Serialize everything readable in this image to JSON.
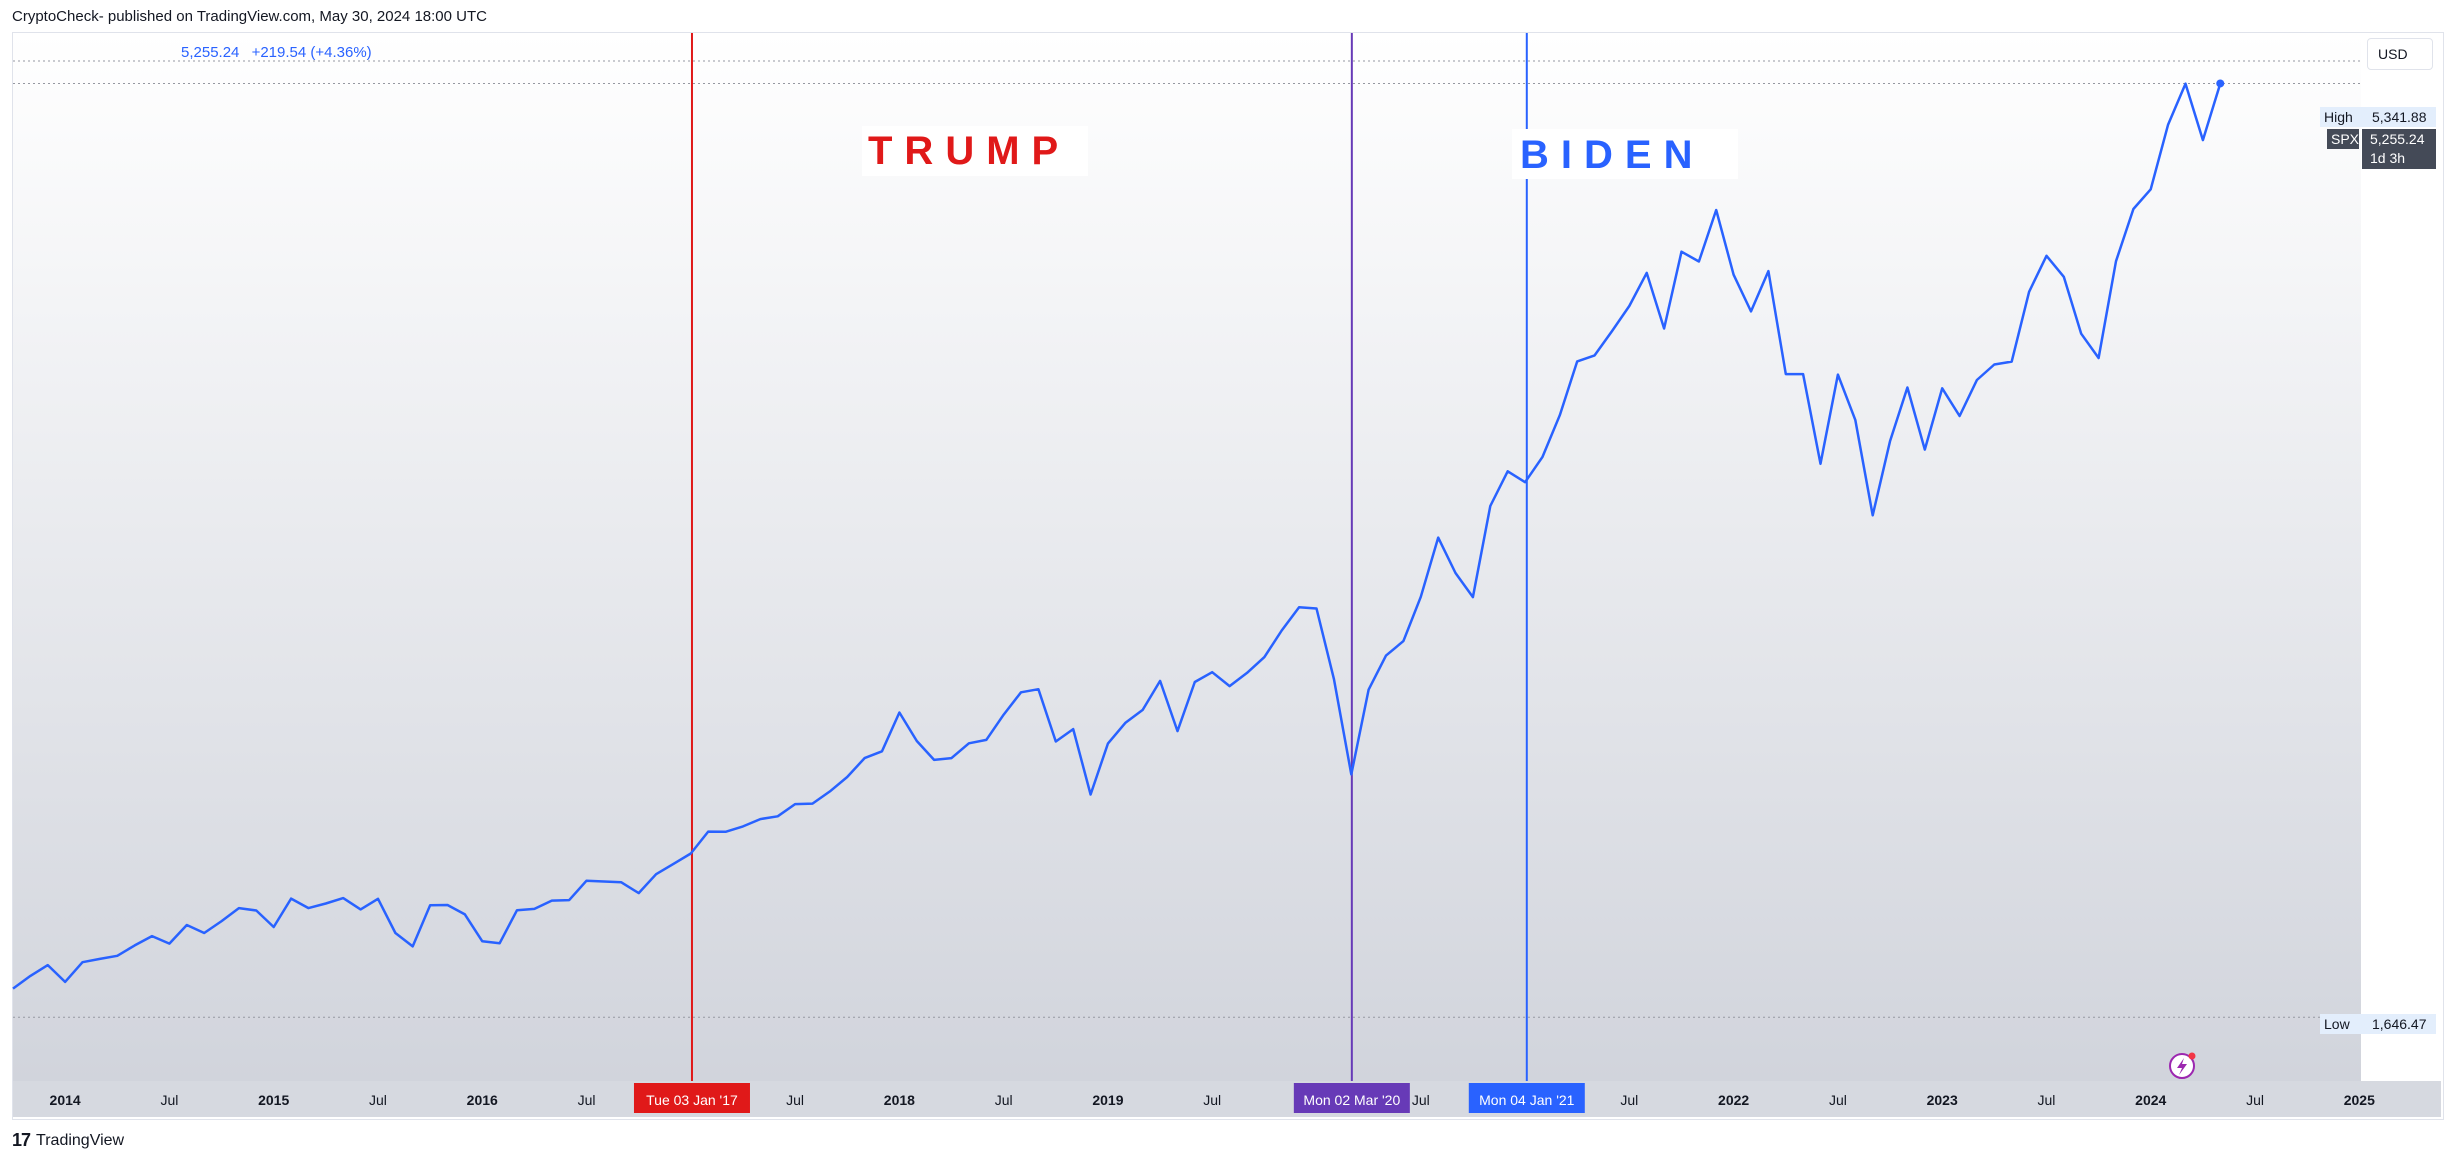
{
  "header": {
    "published": "CryptoCheck- published on TradingView.com, May 30, 2024 18:00 UTC"
  },
  "price_header": {
    "value": "5,255.24",
    "change": "+219.54 (+4.36%)"
  },
  "currency": "USD",
  "footer": {
    "brand": "TradingView",
    "logo_mark": "17"
  },
  "colors": {
    "series": "#2962ff",
    "trump": "#e01919",
    "covid": "#673ab7",
    "biden": "#2962ff"
  },
  "labels": {
    "trump": "TRUMP",
    "biden": "BIDEN"
  },
  "price_scale": {
    "high_label": "High",
    "high_value": "5,341.88",
    "low_label": "Low",
    "low_value": "1,646.47",
    "symbol": "SPX",
    "last_value": "5,255.24",
    "countdown": "1d 3h"
  },
  "markers": [
    {
      "name": "trump",
      "date": "2017-01-03",
      "label": "Tue 03 Jan '17",
      "color": "#e01919"
    },
    {
      "name": "covid",
      "date": "2020-03-02",
      "label": "Mon 02 Mar '20",
      "color": "#673ab7"
    },
    {
      "name": "biden",
      "date": "2021-01-04",
      "label": "Mon 04 Jan '21",
      "color": "#2962ff"
    }
  ],
  "chart_data": {
    "type": "line",
    "title": "",
    "xlabel": "",
    "ylabel": "",
    "series": [
      {
        "name": "SPX",
        "x": [
          "2013-10",
          "2013-11",
          "2013-12",
          "2014-01",
          "2014-02",
          "2014-03",
          "2014-04",
          "2014-05",
          "2014-06",
          "2014-07",
          "2014-08",
          "2014-09",
          "2014-10",
          "2014-11",
          "2014-12",
          "2015-01",
          "2015-02",
          "2015-03",
          "2015-04",
          "2015-05",
          "2015-06",
          "2015-07",
          "2015-08",
          "2015-09",
          "2015-10",
          "2015-11",
          "2015-12",
          "2016-01",
          "2016-02",
          "2016-03",
          "2016-04",
          "2016-05",
          "2016-06",
          "2016-07",
          "2016-08",
          "2016-09",
          "2016-10",
          "2016-11",
          "2016-12",
          "2017-01",
          "2017-02",
          "2017-03",
          "2017-04",
          "2017-05",
          "2017-06",
          "2017-07",
          "2017-08",
          "2017-09",
          "2017-10",
          "2017-11",
          "2017-12",
          "2018-01",
          "2018-02",
          "2018-03",
          "2018-04",
          "2018-05",
          "2018-06",
          "2018-07",
          "2018-08",
          "2018-09",
          "2018-10",
          "2018-11",
          "2018-12",
          "2019-01",
          "2019-02",
          "2019-03",
          "2019-04",
          "2019-05",
          "2019-06",
          "2019-07",
          "2019-08",
          "2019-09",
          "2019-10",
          "2019-11",
          "2019-12",
          "2020-01",
          "2020-02",
          "2020-03",
          "2020-04",
          "2020-05",
          "2020-06",
          "2020-07",
          "2020-08",
          "2020-09",
          "2020-10",
          "2020-11",
          "2020-12",
          "2021-01",
          "2021-02",
          "2021-03",
          "2021-04",
          "2021-05",
          "2021-06",
          "2021-07",
          "2021-08",
          "2021-09",
          "2021-10",
          "2021-11",
          "2021-12",
          "2022-01",
          "2022-02",
          "2022-03",
          "2022-04",
          "2022-05",
          "2022-06",
          "2022-07",
          "2022-08",
          "2022-09",
          "2022-10",
          "2022-11",
          "2022-12",
          "2023-01",
          "2023-02",
          "2023-03",
          "2023-04",
          "2023-05",
          "2023-06",
          "2023-07",
          "2023-08",
          "2023-09",
          "2023-10",
          "2023-11",
          "2023-12",
          "2024-01",
          "2024-02",
          "2024-03",
          "2024-04",
          "2024-05"
        ],
        "values": [
          1757,
          1806,
          1848,
          1783,
          1859,
          1872,
          1884,
          1924,
          1960,
          1931,
          2003,
          1972,
          2018,
          2068,
          2059,
          1995,
          2105,
          2068,
          2086,
          2107,
          2063,
          2104,
          1972,
          1920,
          2079,
          2080,
          2044,
          1940,
          1932,
          2060,
          2065,
          2097,
          2099,
          2174,
          2171,
          2168,
          2126,
          2199,
          2239,
          2279,
          2364,
          2363,
          2384,
          2412,
          2423,
          2470,
          2472,
          2519,
          2575,
          2648,
          2674,
          2824,
          2714,
          2641,
          2648,
          2705,
          2718,
          2816,
          2902,
          2914,
          2712,
          2760,
          2507,
          2704,
          2784,
          2834,
          2946,
          2752,
          2942,
          2980,
          2926,
          2977,
          3038,
          3141,
          3231,
          3226,
          2954,
          2585,
          2912,
          3044,
          3100,
          3271,
          3500,
          3363,
          3270,
          3622,
          3756,
          3714,
          3811,
          3973,
          4181,
          4204,
          4298,
          4395,
          4523,
          4308,
          4605,
          4567,
          4766,
          4516,
          4374,
          4530,
          4132,
          4132,
          3785,
          4130,
          3955,
          3586,
          3872,
          4080,
          3840,
          4077,
          3970,
          4109,
          4169,
          4180,
          4450,
          4589,
          4508,
          4288,
          4194,
          4568,
          4770,
          4846,
          5096,
          5254,
          5036,
          5255
        ]
      }
    ],
    "ylim": [
      1400,
      5450
    ],
    "y_ticks": [
      "1,600.00",
      "1,800.00",
      "2,000.00",
      "2,200.00",
      "2,400.00",
      "2,600.00",
      "2,800.00",
      "3,000.00",
      "3,200.00",
      "3,400.00",
      "3,600.00",
      "3,800.00",
      "4,000.00",
      "4,200.00",
      "4,400.00",
      "4,600.00",
      "4,800.00",
      "5,000.00"
    ],
    "x_ticks": [
      {
        "date": "2014-01",
        "label": "2014",
        "bold": true
      },
      {
        "date": "2014-07",
        "label": "Jul",
        "bold": false
      },
      {
        "date": "2015-01",
        "label": "2015",
        "bold": true
      },
      {
        "date": "2015-07",
        "label": "Jul",
        "bold": false
      },
      {
        "date": "2016-01",
        "label": "2016",
        "bold": true
      },
      {
        "date": "2016-07",
        "label": "Jul",
        "bold": false
      },
      {
        "date": "2017-07",
        "label": "Jul",
        "bold": false
      },
      {
        "date": "2018-01",
        "label": "2018",
        "bold": true
      },
      {
        "date": "2018-07",
        "label": "Jul",
        "bold": false
      },
      {
        "date": "2019-01",
        "label": "2019",
        "bold": true
      },
      {
        "date": "2019-07",
        "label": "Jul",
        "bold": false
      },
      {
        "date": "2020-07",
        "label": "Jul",
        "bold": false
      },
      {
        "date": "2021-07",
        "label": "Jul",
        "bold": false
      },
      {
        "date": "2022-01",
        "label": "2022",
        "bold": true
      },
      {
        "date": "2022-07",
        "label": "Jul",
        "bold": false
      },
      {
        "date": "2023-01",
        "label": "2023",
        "bold": true
      },
      {
        "date": "2023-07",
        "label": "Jul",
        "bold": false
      },
      {
        "date": "2024-01",
        "label": "2024",
        "bold": true
      },
      {
        "date": "2024-07",
        "label": "Jul",
        "bold": false
      },
      {
        "date": "2025-01",
        "label": "2025",
        "bold": true
      }
    ],
    "high": 5341.88,
    "low": 1646.47,
    "grid": false,
    "legend": "none"
  }
}
